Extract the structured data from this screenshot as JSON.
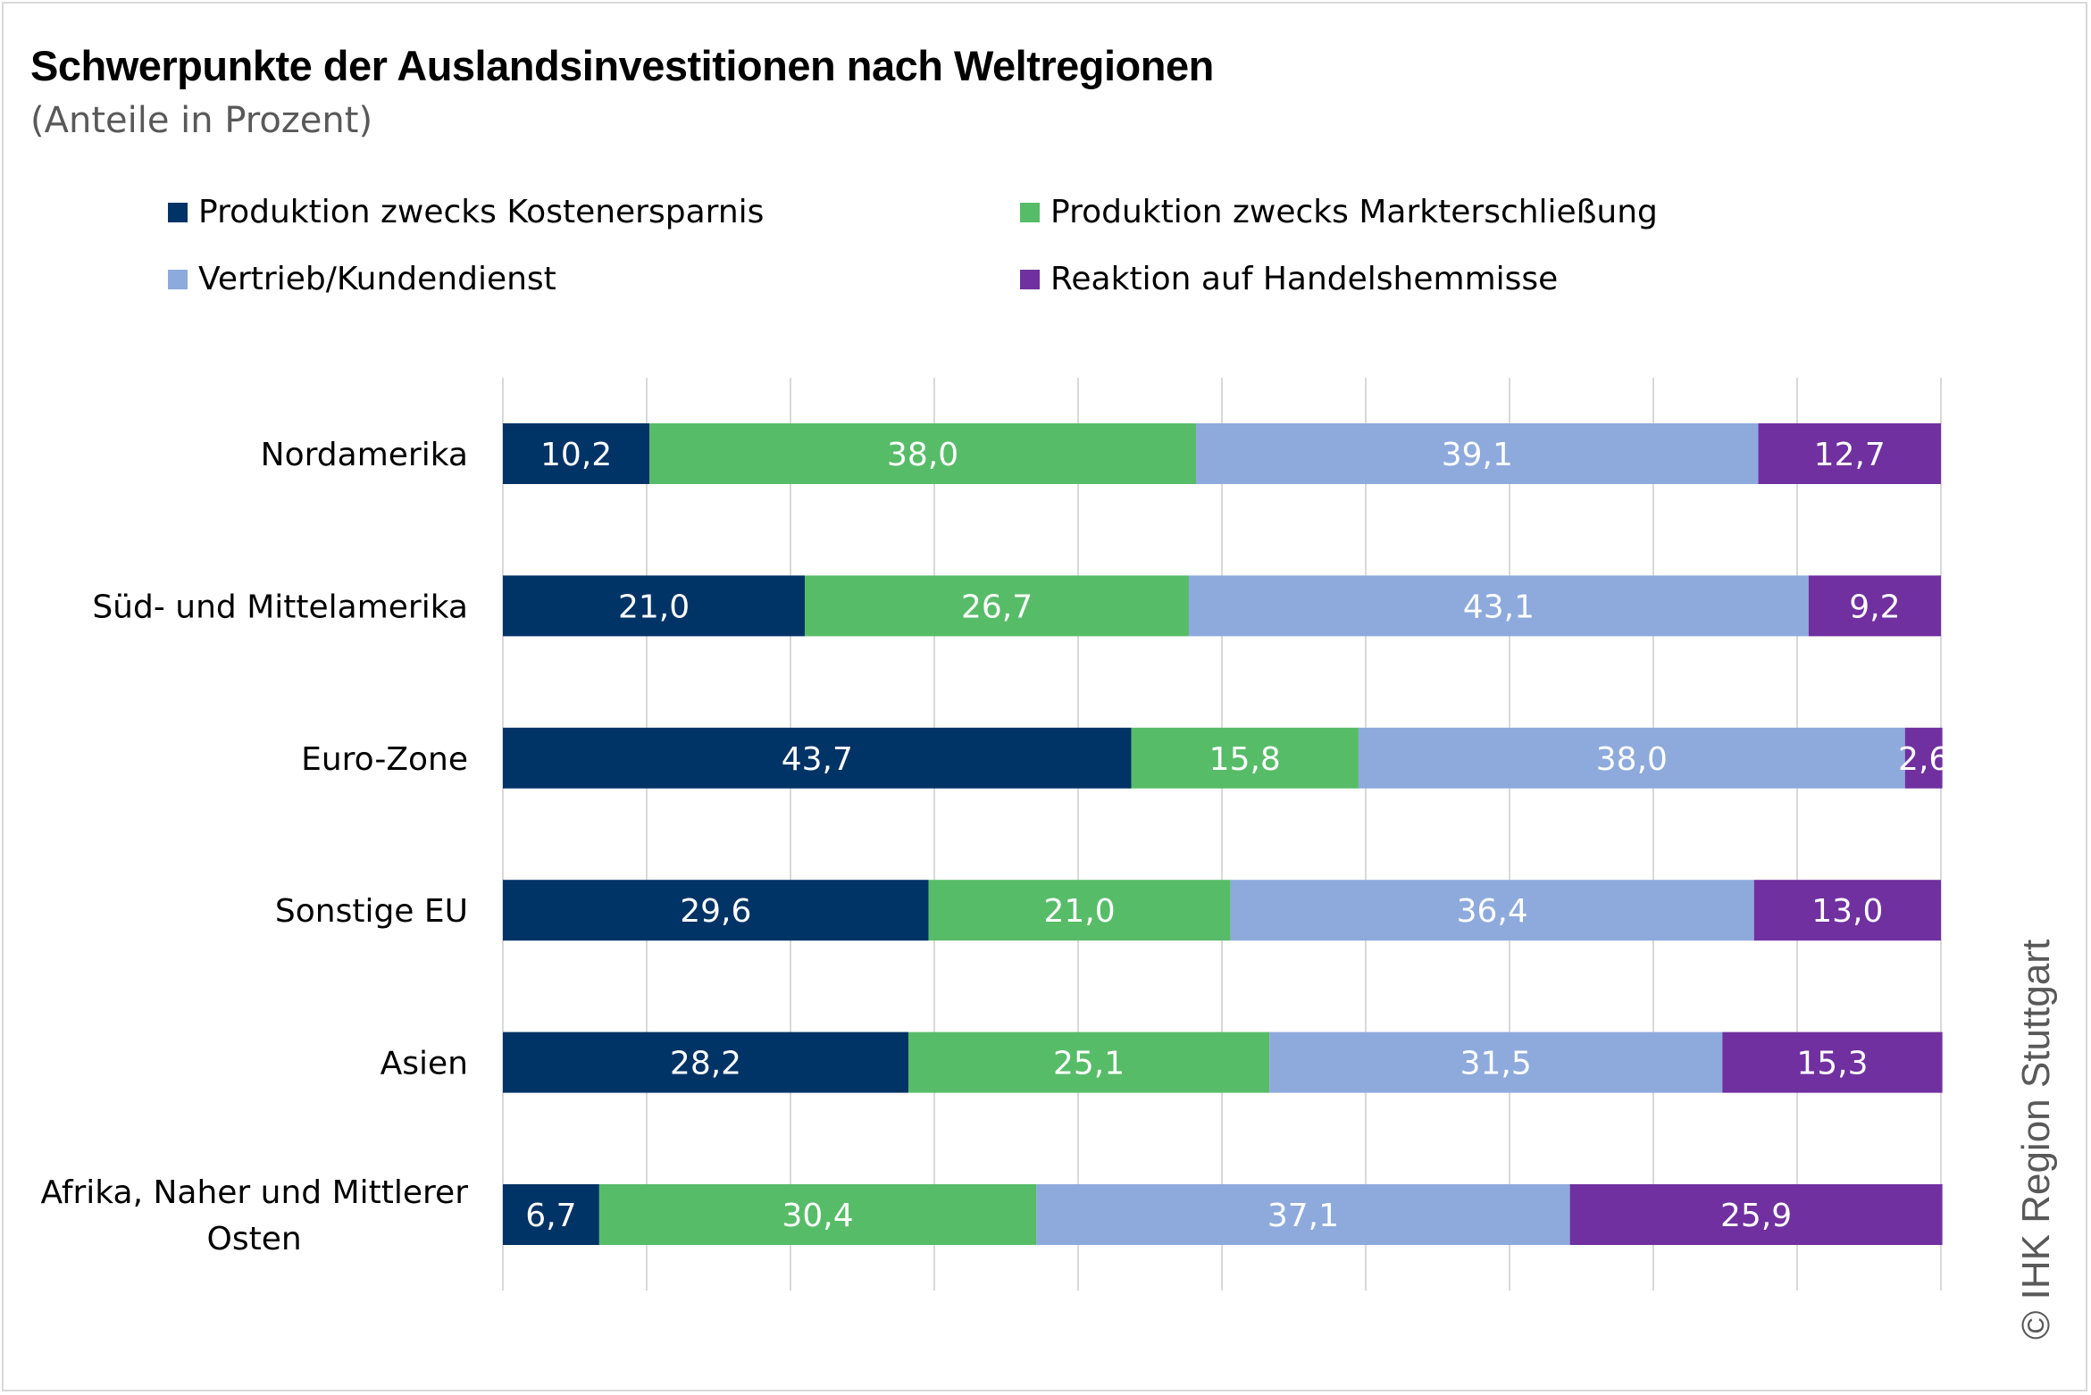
{
  "chart_data": {
    "type": "bar",
    "orientation": "horizontal",
    "stacked": true,
    "title": "Schwerpunkte der Auslandsinvestitionen nach Weltregionen",
    "subtitle": "(Anteile in Prozent)",
    "categories": [
      "Nordamerika",
      "Süd- und Mittelamerika",
      "Euro-Zone",
      "Sonstige EU",
      "Asien",
      "Afrika, Naher und Mittlerer Osten"
    ],
    "category_lines": [
      [
        "Nordamerika"
      ],
      [
        "Süd- und Mittelamerika"
      ],
      [
        "Euro-Zone"
      ],
      [
        "Sonstige EU"
      ],
      [
        "Asien"
      ],
      [
        "Afrika, Naher und Mittlerer",
        "Osten"
      ]
    ],
    "series": [
      {
        "name": "Produktion zwecks Kostenersparnis",
        "color": "#003366",
        "values": [
          10.2,
          21.0,
          43.7,
          29.6,
          28.2,
          6.7
        ],
        "labels": [
          "10,2",
          "21,0",
          "43,7",
          "29,6",
          "28,2",
          "6,7"
        ]
      },
      {
        "name": "Produktion zwecks Markterschließung",
        "color": "#57bc68",
        "values": [
          38.0,
          26.7,
          15.8,
          21.0,
          25.1,
          30.4
        ],
        "labels": [
          "38,0",
          "26,7",
          "15,8",
          "21,0",
          "25,1",
          "30,4"
        ]
      },
      {
        "name": "Vertrieb/Kundendienst",
        "color": "#8eaadc",
        "values": [
          39.1,
          43.1,
          38.0,
          36.4,
          31.5,
          37.1
        ],
        "labels": [
          "39,1",
          "43,1",
          "38,0",
          "36,4",
          "31,5",
          "37,1"
        ]
      },
      {
        "name": "Reaktion auf Handelshemmisse",
        "color": "#7030a0",
        "values": [
          12.7,
          9.2,
          2.6,
          13.0,
          15.3,
          25.9
        ],
        "labels": [
          "12,7",
          "9,2",
          "2,6",
          "13,0",
          "15,3",
          "25,9"
        ]
      }
    ],
    "xlim": [
      0,
      100
    ],
    "xgrid_step": 10,
    "grid": true,
    "legend_position": "top",
    "label_color": "#ffffff",
    "grid_color": "#d9d9d9"
  },
  "watermark": "© IHK Region Stuttgart"
}
